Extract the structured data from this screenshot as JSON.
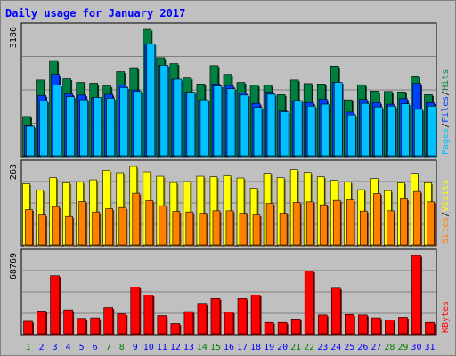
{
  "chart_data": {
    "title": "Daily usage for January 2017",
    "type": "bar",
    "grid": true,
    "categories": [
      "1",
      "2",
      "3",
      "4",
      "5",
      "6",
      "7",
      "8",
      "9",
      "10",
      "11",
      "12",
      "13",
      "14",
      "15",
      "16",
      "17",
      "18",
      "19",
      "20",
      "21",
      "22",
      "23",
      "24",
      "25",
      "26",
      "27",
      "28",
      "29",
      "30",
      "31"
    ],
    "weekend_days": [
      "1",
      "7",
      "8",
      "14",
      "15",
      "21",
      "22",
      "28",
      "29"
    ],
    "panels": [
      {
        "id": "top",
        "max_label": "3186",
        "ylim": [
          0,
          3186
        ],
        "series": [
          {
            "name": "Hits",
            "color": "#008040",
            "values": [
              990,
              1910,
              2400,
              1940,
              1850,
              1830,
              1760,
              2120,
              2220,
              3186,
              2470,
              2320,
              1960,
              1810,
              2270,
              2050,
              1850,
              1780,
              1780,
              1540,
              1910,
              1820,
              1810,
              2260,
              1410,
              1790,
              1630,
              1620,
              1610,
              2010,
              1540
            ]
          },
          {
            "name": "Files",
            "color": "#0040ff",
            "values": [
              760,
              1520,
              2050,
              1560,
              1530,
              1470,
              1550,
              1780,
              1660,
              2820,
              2280,
              1930,
              1600,
              1410,
              1810,
              1770,
              1580,
              1320,
              1600,
              1130,
              1390,
              1340,
              1430,
              1850,
              1100,
              1420,
              1340,
              1300,
              1440,
              1830,
              1340
            ]
          },
          {
            "name": "Pages",
            "color": "#00c0ff",
            "values": [
              740,
              1380,
              1780,
              1490,
              1410,
              1470,
              1450,
              1720,
              1620,
              2820,
              2280,
              1930,
              1600,
              1410,
              1760,
              1690,
              1530,
              1220,
              1550,
              1110,
              1390,
              1250,
              1300,
              1850,
              1030,
              1320,
              1230,
              1250,
              1310,
              1170,
              1250
            ]
          }
        ]
      },
      {
        "id": "mid",
        "max_label": "263",
        "ylim": [
          0,
          263
        ],
        "series": [
          {
            "name": "Visits",
            "color": "#ffff00",
            "values": [
              205,
              183,
              225,
              208,
              210,
              218,
              250,
              242,
              263,
              245,
              230,
              209,
              212,
              230,
              228,
              232,
              224,
              190,
              240,
              225,
              252,
              243,
              228,
              216,
              210,
              185,
              222,
              182,
              208,
              240,
              208
            ]
          },
          {
            "name": "Sites",
            "color": "#ff8000",
            "values": [
              118,
              100,
              128,
              95,
              145,
              110,
              121,
              125,
              173,
              148,
              131,
              112,
              110,
              106,
              114,
              114,
              106,
              100,
              139,
              106,
              142,
              144,
              134,
              149,
              151,
              113,
              172,
              114,
              154,
              179,
              144
            ]
          }
        ]
      },
      {
        "id": "bot",
        "max_label": "68769",
        "ylim": [
          0,
          68769
        ],
        "series": [
          {
            "name": "KBytes",
            "color": "#ff0000",
            "values": [
              11000,
              20000,
              51000,
              21000,
              13500,
              14000,
              23000,
              17500,
              41000,
              34000,
              16000,
              9000,
              19500,
              26000,
              31000,
              19000,
              31000,
              34000,
              10000,
              10000,
              13000,
              55000,
              16500,
              40000,
              17000,
              16500,
              14000,
              12000,
              14500,
              68769,
              10000
            ]
          }
        ]
      }
    ],
    "legends": [
      {
        "panel": "top",
        "items": [
          "Pages",
          "Files",
          "Hits"
        ],
        "colors": [
          "#00c0ff",
          "#0040ff",
          "#008040"
        ]
      },
      {
        "panel": "mid",
        "items": [
          "Sites",
          "Visits"
        ],
        "colors": [
          "#ff8000",
          "#ffff00"
        ]
      },
      {
        "panel": "bot",
        "items": [
          "KBytes"
        ],
        "colors": [
          "#ff0000"
        ]
      }
    ],
    "colors": {
      "background": "#c0c0c0",
      "title": "#0000ff",
      "weekday_label": "#0000ff",
      "weekend_label": "#008000",
      "grid": "#808080"
    }
  }
}
